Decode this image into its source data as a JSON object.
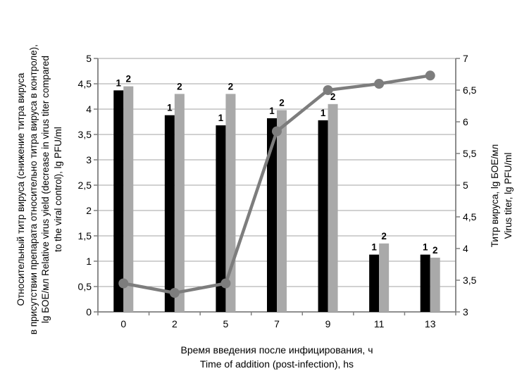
{
  "figure": {
    "background": "#ffffff"
  },
  "chart_data": {
    "type": "bar",
    "subtype": "grouped-bars-with-line-on-secondary-axis",
    "categories": [
      "0",
      "2",
      "5",
      "7",
      "9",
      "11",
      "13"
    ],
    "series": [
      {
        "name": "1",
        "type": "bar",
        "axis": "left",
        "color": "#000000",
        "values": [
          4.37,
          3.88,
          3.68,
          3.82,
          3.78,
          1.13,
          1.13
        ]
      },
      {
        "name": "2",
        "type": "bar",
        "axis": "left",
        "color": "#a9a9a9",
        "values": [
          4.45,
          4.3,
          4.3,
          3.98,
          4.1,
          1.35,
          1.07
        ]
      },
      {
        "name": "Титр вируса / Virus titer",
        "type": "line",
        "axis": "right",
        "color": "#7d7d7d",
        "values": [
          3.45,
          3.3,
          3.45,
          5.85,
          6.5,
          6.6,
          6.73
        ]
      }
    ],
    "bar_labels": [
      "1",
      "2"
    ],
    "left_axis": {
      "min": 0,
      "max": 5,
      "step": 0.5,
      "tick_labels": [
        "0",
        "0,5",
        "1",
        "1,5",
        "2",
        "2,5",
        "3",
        "3,5",
        "4",
        "4,5",
        "5"
      ],
      "title_lines": [
        "Относительный титр вируса (снижение титра вируса",
        "в присутствии препарата относительно титра вируса в контроле),",
        "lg БОЕ/мл Relative virus yield (decrease in virus titer compared",
        "to the viral control), lg PFU/ml"
      ]
    },
    "right_axis": {
      "min": 3,
      "max": 7,
      "step": 0.5,
      "tick_labels": [
        "3",
        "3,5",
        "4",
        "4,5",
        "5",
        "5,5",
        "6",
        "6,5",
        "7"
      ],
      "title_lines": [
        "Титр вируса, lg БОЕ/мл",
        "Virus titer, lg PFU/ml"
      ]
    },
    "x_axis": {
      "title_lines": [
        "Время введения после инфицирования, ч",
        "Time of addition (post-infection), hs"
      ]
    },
    "grid": {
      "horizontal": true,
      "vertical": false
    },
    "legend": "none",
    "colors": {
      "bar1": "#000000",
      "bar2": "#a9a9a9",
      "line": "#7d7d7d",
      "gridline": "#a3a3a3",
      "axis": "#7f7f7f",
      "text": "#000000"
    }
  }
}
